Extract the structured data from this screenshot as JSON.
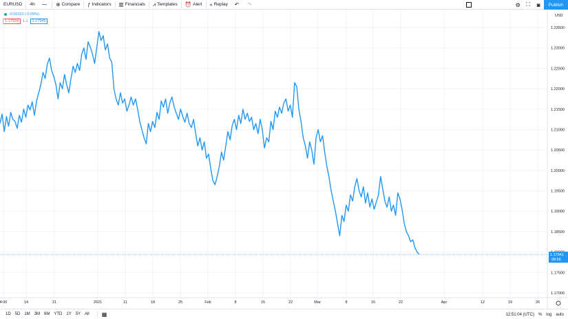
{
  "toolbar": {
    "symbol": "EURUSD",
    "interval": "4h",
    "compare": "Compare",
    "indicators": "Indicators",
    "financials": "Financials",
    "templates": "Templates",
    "alert": "Alert",
    "replay": "Replay",
    "publish": "Publish"
  },
  "legend": {
    "change": "-0.00110 (-0.09%)",
    "bid": "1.17934",
    "spread": "1.1",
    "ask": "1.17945"
  },
  "price_axis": {
    "currency": "USD",
    "current_price": "1.17941",
    "countdown": "08:56"
  },
  "bottombar": {
    "ranges": [
      "1D",
      "5D",
      "1M",
      "3M",
      "6M",
      "YTD",
      "1Y",
      "5Y",
      "All"
    ],
    "clock": "12:51:04 (UTC)",
    "percent": "%",
    "log": "log",
    "auto": "auto"
  },
  "chart_data": {
    "type": "line",
    "title": "",
    "xlabel": "",
    "ylabel": "",
    "x_ticks": [
      "4:00",
      "14",
      "21",
      "2021",
      "11",
      "18",
      "25",
      "Feb",
      "8",
      "15",
      "22",
      "Mar",
      "8",
      "15",
      "22",
      "Apr",
      "12",
      "19",
      "26"
    ],
    "y_ticks": [
      "1.23500",
      "1.23000",
      "1.22500",
      "1.22000",
      "1.21500",
      "1.21000",
      "1.20500",
      "1.20000",
      "1.19500",
      "1.19000",
      "1.18500",
      "1.18000",
      "1.17500",
      "1.17000"
    ],
    "ylim": [
      1.17,
      1.237
    ],
    "color": "#2196f3",
    "series": [
      {
        "values": [
          1.2115,
          1.2138,
          1.2095,
          1.2132,
          1.2108,
          1.2142,
          1.2125,
          1.212,
          1.2103,
          1.2135,
          1.2118,
          1.215,
          1.213,
          1.216,
          1.2148,
          1.2168,
          1.2135,
          1.217,
          1.219,
          1.221,
          1.224,
          1.2225,
          1.226,
          1.2275,
          1.2245,
          1.223,
          1.221,
          1.2175,
          1.2215,
          1.22,
          1.2235,
          1.221,
          1.219,
          1.2225,
          1.2255,
          1.224,
          1.2262,
          1.2245,
          1.2285,
          1.23,
          1.2272,
          1.2315,
          1.2302,
          1.2285,
          1.2262,
          1.23,
          1.234,
          1.2318,
          1.233,
          1.2295,
          1.231,
          1.2275,
          1.2265,
          1.22,
          1.2175,
          1.216,
          1.219,
          1.2165,
          1.2175,
          1.2145,
          1.216,
          1.218,
          1.216,
          1.2175,
          1.215,
          1.212,
          1.21,
          1.208,
          1.2065,
          1.2115,
          1.2095,
          1.212,
          1.2105,
          1.2142,
          1.2125,
          1.217,
          1.2155,
          1.2175,
          1.214,
          1.2165,
          1.218,
          1.2155,
          1.214,
          1.2125,
          1.215,
          1.2132,
          1.2118,
          1.214,
          1.2115,
          1.2105,
          1.2125,
          1.209,
          1.206,
          1.208,
          1.205,
          1.207,
          1.203,
          1.204,
          1.2005,
          1.1975,
          1.1965,
          1.1985,
          1.201,
          1.2045,
          1.2025,
          1.206,
          1.2095,
          1.2075,
          1.211,
          1.2125,
          1.21,
          1.2135,
          1.2115,
          1.215,
          1.2125,
          1.214,
          1.212,
          1.213,
          1.21,
          1.2115,
          1.209,
          1.2125,
          1.21,
          1.2055,
          1.208,
          1.207,
          1.212,
          1.21,
          1.2145,
          1.213,
          1.2155,
          1.214,
          1.2165,
          1.2175,
          1.2145,
          1.216,
          1.213,
          1.2215,
          1.2205,
          1.215,
          1.212,
          1.208,
          1.206,
          1.203,
          1.207,
          1.205,
          1.2015,
          1.208,
          1.21,
          1.207,
          1.2085,
          1.2045,
          1.201,
          1.1985,
          1.195,
          1.1925,
          1.19,
          1.187,
          1.184,
          1.189,
          1.1875,
          1.1915,
          1.19,
          1.194,
          1.1925,
          1.196,
          1.198,
          1.195,
          1.1935,
          1.196,
          1.192,
          1.1945,
          1.191,
          1.193,
          1.1905,
          1.1922,
          1.194,
          1.1985,
          1.1955,
          1.1925,
          1.191,
          1.1935,
          1.19,
          1.1915,
          1.189,
          1.1945,
          1.193,
          1.1905,
          1.187,
          1.185,
          1.184,
          1.1825,
          1.183,
          1.181,
          1.18,
          1.17941
        ]
      }
    ]
  }
}
